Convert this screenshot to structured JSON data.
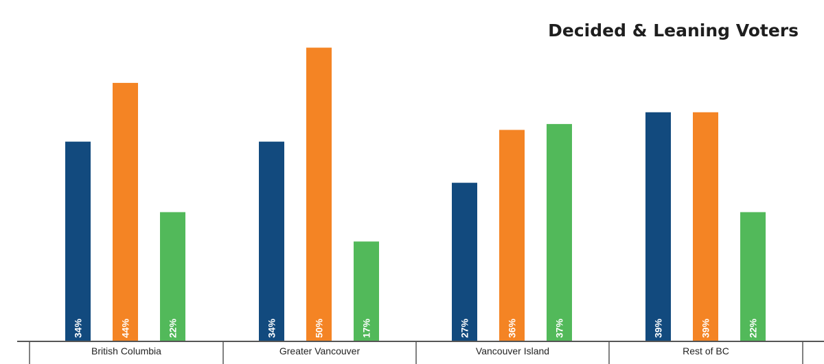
{
  "chart_data": {
    "type": "bar",
    "title": "Decided & Leaning Voters",
    "xlabel": "",
    "ylabel": "",
    "categories": [
      "British Columbia",
      "Greater Vancouver",
      "Vancouver Island",
      "Rest of BC"
    ],
    "series": [
      {
        "color": "#124a7e",
        "values": [
          34,
          34,
          27,
          39
        ],
        "labels": [
          "34%",
          "34%",
          "27%",
          "39%"
        ]
      },
      {
        "color": "#f48424",
        "values": [
          44,
          50,
          36,
          39
        ],
        "labels": [
          "44%",
          "50%",
          "36%",
          "39%"
        ]
      },
      {
        "color": "#52b95a",
        "values": [
          22,
          17,
          37,
          22
        ],
        "labels": [
          "22%",
          "17%",
          "37%",
          "22%"
        ]
      }
    ],
    "ylim": [
      0,
      50
    ],
    "grid": false,
    "legend": "none"
  }
}
